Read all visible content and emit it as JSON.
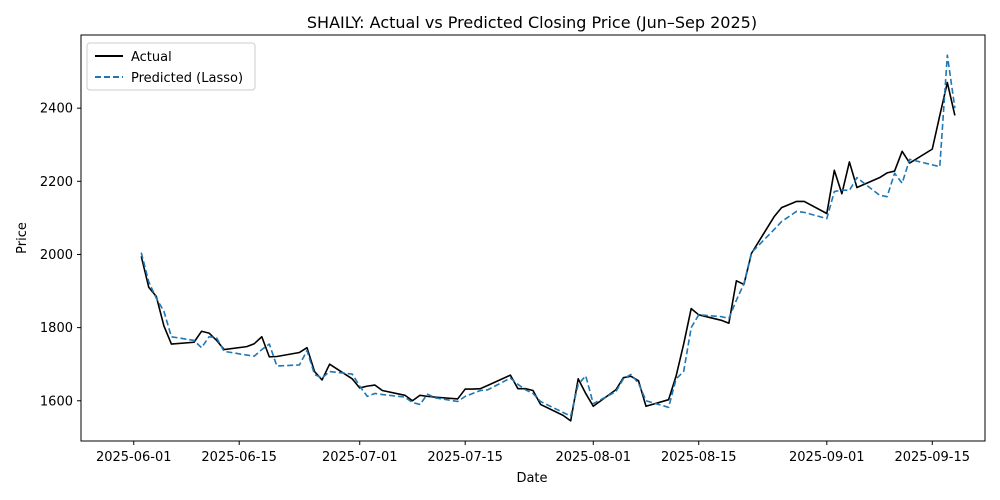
{
  "chart_data": {
    "type": "line",
    "title": "SHAILY: Actual vs Predicted Closing Price (Jun–Sep 2025)",
    "xlabel": "Date",
    "ylabel": "Price",
    "xlim": [
      "2025-05-25",
      "2025-09-22"
    ],
    "ylim": [
      1490,
      2600
    ],
    "x_ticks": [
      "2025-06-01",
      "2025-06-15",
      "2025-07-01",
      "2025-07-15",
      "2025-08-01",
      "2025-08-15",
      "2025-09-01",
      "2025-09-15"
    ],
    "y_ticks": [
      1600,
      1800,
      2000,
      2200,
      2400
    ],
    "grid": false,
    "legend_position": "top-left",
    "series": [
      {
        "name": "Actual",
        "color": "#000000",
        "style": "solid",
        "points": [
          [
            "2025-06-02",
            1995
          ],
          [
            "2025-06-03",
            1910
          ],
          [
            "2025-06-04",
            1885
          ],
          [
            "2025-06-05",
            1805
          ],
          [
            "2025-06-06",
            1755
          ],
          [
            "2025-06-09",
            1760
          ],
          [
            "2025-06-10",
            1790
          ],
          [
            "2025-06-11",
            1785
          ],
          [
            "2025-06-12",
            1765
          ],
          [
            "2025-06-13",
            1740
          ],
          [
            "2025-06-16",
            1748
          ],
          [
            "2025-06-17",
            1756
          ],
          [
            "2025-06-18",
            1775
          ],
          [
            "2025-06-19",
            1720
          ],
          [
            "2025-06-20",
            1721
          ],
          [
            "2025-06-23",
            1732
          ],
          [
            "2025-06-24",
            1745
          ],
          [
            "2025-06-25",
            1680
          ],
          [
            "2025-06-26",
            1657
          ],
          [
            "2025-06-27",
            1700
          ],
          [
            "2025-06-30",
            1660
          ],
          [
            "2025-07-01",
            1635
          ],
          [
            "2025-07-02",
            1640
          ],
          [
            "2025-07-03",
            1643
          ],
          [
            "2025-07-04",
            1628
          ],
          [
            "2025-07-07",
            1615
          ],
          [
            "2025-07-08",
            1600
          ],
          [
            "2025-07-09",
            1615
          ],
          [
            "2025-07-10",
            1612
          ],
          [
            "2025-07-11",
            1610
          ],
          [
            "2025-07-14",
            1605
          ],
          [
            "2025-07-15",
            1632
          ],
          [
            "2025-07-16",
            1632
          ],
          [
            "2025-07-17",
            1633
          ],
          [
            "2025-07-18",
            1642
          ],
          [
            "2025-07-21",
            1670
          ],
          [
            "2025-07-22",
            1633
          ],
          [
            "2025-07-23",
            1633
          ],
          [
            "2025-07-24",
            1628
          ],
          [
            "2025-07-25",
            1590
          ],
          [
            "2025-07-28",
            1560
          ],
          [
            "2025-07-29",
            1545
          ],
          [
            "2025-07-30",
            1660
          ],
          [
            "2025-07-31",
            1620
          ],
          [
            "2025-08-01",
            1585
          ],
          [
            "2025-08-04",
            1630
          ],
          [
            "2025-08-05",
            1663
          ],
          [
            "2025-08-06",
            1667
          ],
          [
            "2025-08-07",
            1655
          ],
          [
            "2025-08-08",
            1585
          ],
          [
            "2025-08-11",
            1603
          ],
          [
            "2025-08-12",
            1668
          ],
          [
            "2025-08-13",
            1755
          ],
          [
            "2025-08-14",
            1852
          ],
          [
            "2025-08-15",
            1835
          ],
          [
            "2025-08-18",
            1820
          ],
          [
            "2025-08-19",
            1812
          ],
          [
            "2025-08-20",
            1928
          ],
          [
            "2025-08-21",
            1918
          ],
          [
            "2025-08-22",
            2003
          ],
          [
            "2025-08-25",
            2103
          ],
          [
            "2025-08-26",
            2128
          ],
          [
            "2025-08-28",
            2145
          ],
          [
            "2025-08-29",
            2145
          ],
          [
            "2025-09-01",
            2112
          ],
          [
            "2025-09-02",
            2230
          ],
          [
            "2025-09-03",
            2166
          ],
          [
            "2025-09-04",
            2253
          ],
          [
            "2025-09-05",
            2183
          ],
          [
            "2025-09-08",
            2210
          ],
          [
            "2025-09-09",
            2223
          ],
          [
            "2025-09-10",
            2228
          ],
          [
            "2025-09-11",
            2282
          ],
          [
            "2025-09-12",
            2250
          ],
          [
            "2025-09-15",
            2288
          ],
          [
            "2025-09-16",
            2380
          ],
          [
            "2025-09-17",
            2470
          ],
          [
            "2025-09-18",
            2380
          ]
        ]
      },
      {
        "name": "Predicted (Lasso)",
        "color": "#1f77b4",
        "style": "dashed",
        "points": [
          [
            "2025-06-02",
            2005
          ],
          [
            "2025-06-03",
            1925
          ],
          [
            "2025-06-04",
            1880
          ],
          [
            "2025-06-05",
            1845
          ],
          [
            "2025-06-06",
            1775
          ],
          [
            "2025-06-09",
            1765
          ],
          [
            "2025-06-10",
            1745
          ],
          [
            "2025-06-11",
            1775
          ],
          [
            "2025-06-12",
            1772
          ],
          [
            "2025-06-13",
            1735
          ],
          [
            "2025-06-16",
            1725
          ],
          [
            "2025-06-17",
            1722
          ],
          [
            "2025-06-18",
            1740
          ],
          [
            "2025-06-19",
            1755
          ],
          [
            "2025-06-20",
            1695
          ],
          [
            "2025-06-23",
            1698
          ],
          [
            "2025-06-24",
            1737
          ],
          [
            "2025-06-25",
            1672
          ],
          [
            "2025-06-26",
            1662
          ],
          [
            "2025-06-27",
            1680
          ],
          [
            "2025-06-30",
            1673
          ],
          [
            "2025-07-01",
            1640
          ],
          [
            "2025-07-02",
            1612
          ],
          [
            "2025-07-03",
            1620
          ],
          [
            "2025-07-04",
            1617
          ],
          [
            "2025-07-07",
            1610
          ],
          [
            "2025-07-08",
            1595
          ],
          [
            "2025-07-09",
            1590
          ],
          [
            "2025-07-10",
            1618
          ],
          [
            "2025-07-11",
            1608
          ],
          [
            "2025-07-14",
            1598
          ],
          [
            "2025-07-15",
            1612
          ],
          [
            "2025-07-16",
            1620
          ],
          [
            "2025-07-17",
            1628
          ],
          [
            "2025-07-18",
            1630
          ],
          [
            "2025-07-21",
            1662
          ],
          [
            "2025-07-22",
            1645
          ],
          [
            "2025-07-23",
            1630
          ],
          [
            "2025-07-24",
            1620
          ],
          [
            "2025-07-25",
            1598
          ],
          [
            "2025-07-28",
            1568
          ],
          [
            "2025-07-29",
            1558
          ],
          [
            "2025-07-30",
            1645
          ],
          [
            "2025-07-31",
            1668
          ],
          [
            "2025-08-01",
            1592
          ],
          [
            "2025-08-04",
            1625
          ],
          [
            "2025-08-05",
            1660
          ],
          [
            "2025-08-06",
            1672
          ],
          [
            "2025-08-07",
            1648
          ],
          [
            "2025-08-08",
            1600
          ],
          [
            "2025-08-11",
            1582
          ],
          [
            "2025-08-12",
            1660
          ],
          [
            "2025-08-13",
            1680
          ],
          [
            "2025-08-14",
            1800
          ],
          [
            "2025-08-15",
            1835
          ],
          [
            "2025-08-18",
            1830
          ],
          [
            "2025-08-19",
            1825
          ],
          [
            "2025-08-20",
            1875
          ],
          [
            "2025-08-21",
            1920
          ],
          [
            "2025-08-22",
            2005
          ],
          [
            "2025-08-25",
            2068
          ],
          [
            "2025-08-26",
            2090
          ],
          [
            "2025-08-28",
            2118
          ],
          [
            "2025-08-29",
            2115
          ],
          [
            "2025-09-01",
            2098
          ],
          [
            "2025-09-02",
            2172
          ],
          [
            "2025-09-03",
            2176
          ],
          [
            "2025-09-04",
            2175
          ],
          [
            "2025-09-05",
            2210
          ],
          [
            "2025-09-08",
            2162
          ],
          [
            "2025-09-09",
            2158
          ],
          [
            "2025-09-10",
            2222
          ],
          [
            "2025-09-11",
            2195
          ],
          [
            "2025-09-12",
            2260
          ],
          [
            "2025-09-15",
            2245
          ],
          [
            "2025-09-16",
            2240
          ],
          [
            "2025-09-17",
            2545
          ],
          [
            "2025-09-18",
            2400
          ]
        ]
      }
    ]
  }
}
